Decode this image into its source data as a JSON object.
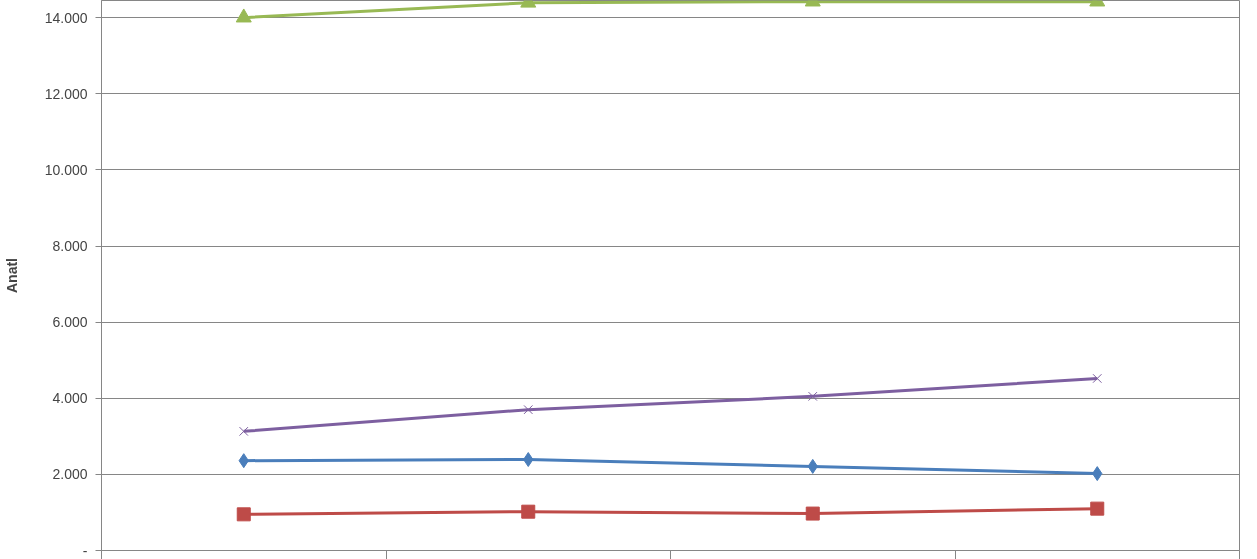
{
  "chart_data": {
    "type": "line",
    "ylabel": "Anatl",
    "categories": [
      null,
      null,
      null,
      null
    ],
    "series": [
      {
        "color": "#4a7ebb",
        "marker": "diamond",
        "values": [
          2360,
          2390,
          2210,
          2020
        ]
      },
      {
        "color": "#be4b48",
        "marker": "square",
        "values": [
          950,
          1020,
          970,
          1100
        ]
      },
      {
        "color": "#98b954",
        "marker": "triangle",
        "values": [
          14000,
          14390,
          14420,
          14420
        ]
      },
      {
        "color": "#7d5fa0",
        "marker": "cross",
        "values": [
          3130,
          3700,
          4050,
          4520
        ]
      }
    ],
    "ylim": [
      0,
      14450
    ],
    "yticks": [
      {
        "value": 0,
        "label": "-"
      },
      {
        "value": 2000,
        "label": "2.000"
      },
      {
        "value": 4000,
        "label": "4.000"
      },
      {
        "value": 6000,
        "label": "6.000"
      },
      {
        "value": 8000,
        "label": "8.000"
      },
      {
        "value": 10000,
        "label": "10.000"
      },
      {
        "value": 12000,
        "label": "12.000"
      },
      {
        "value": 14000,
        "label": "14.000"
      }
    ],
    "grid": "y",
    "tick_labels": "y",
    "line_style": "solid"
  }
}
